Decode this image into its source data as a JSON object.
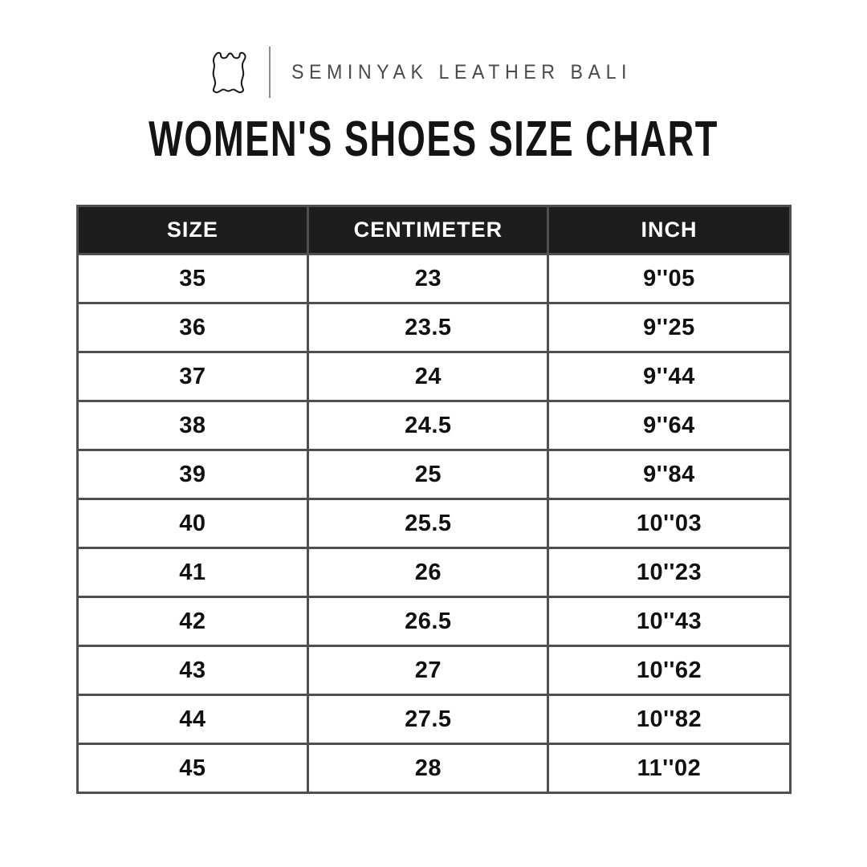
{
  "brand": {
    "name": "SEMINYAK LEATHER BALI",
    "icon": "leather-hide-icon"
  },
  "page_title": "WOMEN'S SHOES SIZE CHART",
  "chart_data": {
    "type": "table",
    "title": "WOMEN'S SHOES SIZE CHART",
    "columns": [
      "SIZE",
      "CENTIMETER",
      "INCH"
    ],
    "rows": [
      [
        "35",
        "23",
        "9''05"
      ],
      [
        "36",
        "23.5",
        "9''25"
      ],
      [
        "37",
        "24",
        "9''44"
      ],
      [
        "38",
        "24.5",
        "9''64"
      ],
      [
        "39",
        "25",
        "9''84"
      ],
      [
        "40",
        "25.5",
        "10''03"
      ],
      [
        "41",
        "26",
        "10''23"
      ],
      [
        "42",
        "26.5",
        "10''43"
      ],
      [
        "43",
        "27",
        "10''62"
      ],
      [
        "44",
        "27.5",
        "10''82"
      ],
      [
        "45",
        "28",
        "11''02"
      ]
    ],
    "layout": {
      "header_bg": "#1d1d1d",
      "header_text_color": "#ffffff",
      "border_color": "#4f4f4f",
      "cell_text_color": "#111111",
      "background": "#ffffff"
    }
  },
  "colors": {
    "brand_text": "#4a4a4a",
    "title_text": "#141414",
    "divider": "#8c8c8c"
  }
}
